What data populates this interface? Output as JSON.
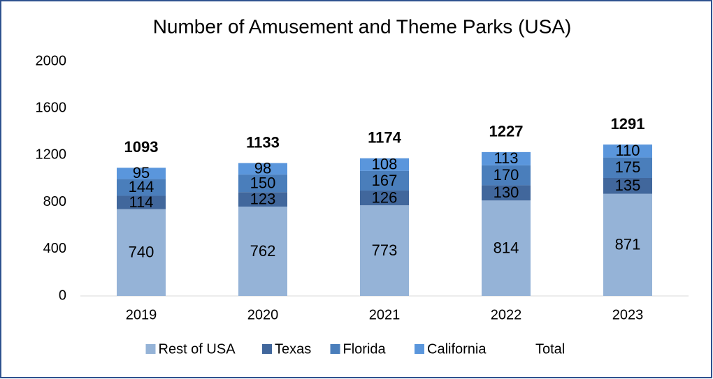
{
  "chart_data": {
    "type": "stacked_bar",
    "title": "Number of Amusement and Theme Parks (USA)",
    "categories": [
      "2019",
      "2020",
      "2021",
      "2022",
      "2023"
    ],
    "series": [
      {
        "name": "Rest of USA",
        "color": "#95b3d7",
        "values": [
          740,
          762,
          773,
          814,
          871
        ]
      },
      {
        "name": "Texas",
        "color": "#41679c",
        "values": [
          114,
          123,
          126,
          130,
          135
        ]
      },
      {
        "name": "Florida",
        "color": "#4a7ebb",
        "values": [
          144,
          150,
          167,
          170,
          175
        ]
      },
      {
        "name": "California",
        "color": "#5a96dc",
        "values": [
          95,
          98,
          108,
          113,
          110
        ]
      },
      {
        "name": "Total",
        "values": [
          1093,
          1133,
          1174,
          1227,
          1291
        ]
      }
    ],
    "ylim": [
      0,
      2000
    ],
    "yticks": [
      0,
      400,
      800,
      1200,
      1600,
      2000
    ],
    "legend": "bottom"
  }
}
